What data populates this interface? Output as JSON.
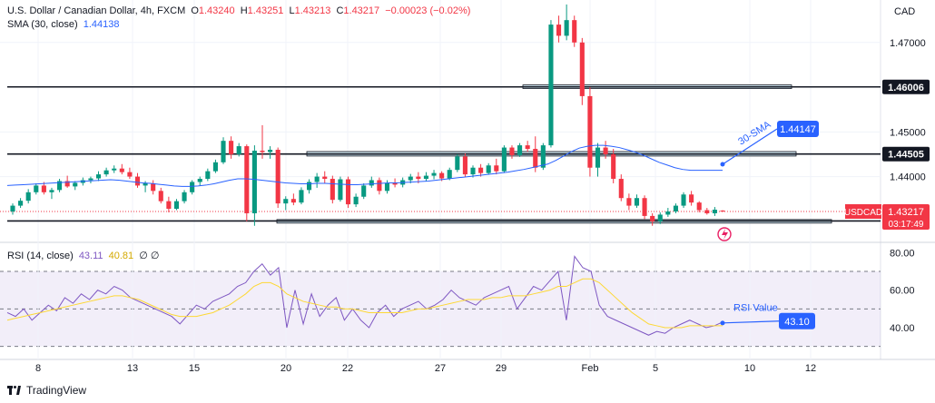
{
  "header": {
    "symbol_line": "U.S. Dollar / Canadian Dollar, 4h, FXCM",
    "open_label": "O",
    "open": "1.43240",
    "high_label": "H",
    "high": "1.43251",
    "low_label": "L",
    "low": "1.43213",
    "close_label": "C",
    "close": "1.43217",
    "change": "−0.00023 (−0.02%)",
    "sma_label": "SMA (30, close)",
    "sma_value": "1.44138",
    "rsi_label": "RSI (14, close)",
    "rsi_value": "43.11",
    "rsi_ma_value": "40.81",
    "rsi_extra": "∅ ∅"
  },
  "currency": "CAD",
  "price_axis": [
    "1.47000",
    "1.45000",
    "1.44000"
  ],
  "rsi_axis": [
    "80.00",
    "60.00",
    "40.00"
  ],
  "date_axis": [
    "8",
    "13",
    "15",
    "20",
    "22",
    "27",
    "29",
    "Feb",
    "5",
    "10",
    "12"
  ],
  "levels": [
    "1.46006",
    "1.44505",
    "1.43009"
  ],
  "price_tag": {
    "symbol": "USDCAD",
    "price": "1.43217",
    "countdown": "03:17:49"
  },
  "annotations": {
    "sma_text": "30-SMA",
    "sma_box": "1.44147",
    "rsi_text": "RSI Value",
    "rsi_box": "43.10"
  },
  "brand": "TradingView",
  "colors": {
    "up": "#089981",
    "down": "#f23645",
    "sma": "#2962ff",
    "rsi": "#7e57c2",
    "rsi_ma": "#fdd835",
    "annot": "#2962ff",
    "zone": "#c9dfe8"
  },
  "chart_data": [
    {
      "type": "candlestick",
      "title": "U.S. Dollar / Canadian Dollar, 4h, FXCM",
      "ylim": [
        1.4255,
        1.4795
      ],
      "x_ticks": [
        "8",
        "13",
        "15",
        "20",
        "22",
        "27",
        "29",
        "Feb",
        "5",
        "10",
        "12"
      ],
      "ohlc": [
        [
          1.4322,
          1.434,
          1.4315,
          1.4335
        ],
        [
          1.4335,
          1.4352,
          1.433,
          1.4346
        ],
        [
          1.4346,
          1.4372,
          1.434,
          1.4365
        ],
        [
          1.4365,
          1.4385,
          1.436,
          1.438
        ],
        [
          1.438,
          1.4388,
          1.436,
          1.4365
        ],
        [
          1.4365,
          1.4375,
          1.435,
          1.437
        ],
        [
          1.437,
          1.4395,
          1.4365,
          1.439
        ],
        [
          1.439,
          1.4402,
          1.4375,
          1.4378
        ],
        [
          1.4378,
          1.439,
          1.437,
          1.4386
        ],
        [
          1.4386,
          1.4398,
          1.438,
          1.4392
        ],
        [
          1.4392,
          1.44,
          1.4385,
          1.4396
        ],
        [
          1.4396,
          1.4412,
          1.439,
          1.4405
        ],
        [
          1.4405,
          1.442,
          1.44,
          1.4414
        ],
        [
          1.4414,
          1.4425,
          1.4408,
          1.4418
        ],
        [
          1.4418,
          1.4428,
          1.4405,
          1.441
        ],
        [
          1.441,
          1.442,
          1.4395,
          1.44
        ],
        [
          1.44,
          1.4408,
          1.4375,
          1.438
        ],
        [
          1.438,
          1.439,
          1.4365,
          1.4385
        ],
        [
          1.4385,
          1.4392,
          1.436,
          1.4368
        ],
        [
          1.4368,
          1.4375,
          1.434,
          1.4345
        ],
        [
          1.4345,
          1.4355,
          1.432,
          1.4328
        ],
        [
          1.4328,
          1.435,
          1.4325,
          1.4345
        ],
        [
          1.4345,
          1.437,
          1.434,
          1.4365
        ],
        [
          1.4365,
          1.4392,
          1.436,
          1.4388
        ],
        [
          1.4388,
          1.44,
          1.438,
          1.4395
        ],
        [
          1.4395,
          1.4418,
          1.439,
          1.4412
        ],
        [
          1.4412,
          1.4438,
          1.4408,
          1.4432
        ],
        [
          1.4432,
          1.4488,
          1.4428,
          1.448
        ],
        [
          1.448,
          1.449,
          1.444,
          1.445
        ],
        [
          1.445,
          1.4475,
          1.4445,
          1.4468
        ],
        [
          1.4468,
          1.4472,
          1.43,
          1.4318
        ],
        [
          1.4318,
          1.447,
          1.429,
          1.4458
        ],
        [
          1.4458,
          1.4515,
          1.444,
          1.4455
        ],
        [
          1.4455,
          1.4468,
          1.444,
          1.446
        ],
        [
          1.446,
          1.4465,
          1.433,
          1.434
        ],
        [
          1.434,
          1.4356,
          1.4325,
          1.435
        ],
        [
          1.435,
          1.4362,
          1.4336,
          1.4342
        ],
        [
          1.4342,
          1.4376,
          1.4338,
          1.437
        ],
        [
          1.437,
          1.4394,
          1.4362,
          1.4388
        ],
        [
          1.4388,
          1.4408,
          1.4375,
          1.44
        ],
        [
          1.44,
          1.4412,
          1.4385,
          1.4395
        ],
        [
          1.4395,
          1.4402,
          1.434,
          1.4348
        ],
        [
          1.4348,
          1.44,
          1.4344,
          1.4394
        ],
        [
          1.4394,
          1.44,
          1.433,
          1.4338
        ],
        [
          1.4338,
          1.4362,
          1.4332,
          1.4355
        ],
        [
          1.4355,
          1.4385,
          1.435,
          1.438
        ],
        [
          1.438,
          1.44,
          1.4375,
          1.4392
        ],
        [
          1.4392,
          1.4398,
          1.436,
          1.4368
        ],
        [
          1.4368,
          1.4392,
          1.4362,
          1.4385
        ],
        [
          1.4385,
          1.4396,
          1.4376,
          1.4382
        ],
        [
          1.4382,
          1.4398,
          1.4376,
          1.4392
        ],
        [
          1.4392,
          1.4406,
          1.4385,
          1.44
        ],
        [
          1.44,
          1.441,
          1.4385,
          1.4395
        ],
        [
          1.4395,
          1.441,
          1.439,
          1.4402
        ],
        [
          1.4402,
          1.4415,
          1.4394,
          1.4408
        ],
        [
          1.4408,
          1.4412,
          1.439,
          1.4396
        ],
        [
          1.4396,
          1.442,
          1.4392,
          1.4415
        ],
        [
          1.4415,
          1.445,
          1.441,
          1.4445
        ],
        [
          1.4445,
          1.4452,
          1.44,
          1.4405
        ],
        [
          1.4405,
          1.4425,
          1.4398,
          1.442
        ],
        [
          1.442,
          1.4428,
          1.44,
          1.4408
        ],
        [
          1.4408,
          1.443,
          1.4404,
          1.4425
        ],
        [
          1.4425,
          1.444,
          1.4405,
          1.4412
        ],
        [
          1.4412,
          1.447,
          1.4408,
          1.4465
        ],
        [
          1.4465,
          1.447,
          1.444,
          1.4448
        ],
        [
          1.4448,
          1.4475,
          1.4444,
          1.447
        ],
        [
          1.447,
          1.448,
          1.4455,
          1.4462
        ],
        [
          1.4462,
          1.449,
          1.441,
          1.442
        ],
        [
          1.442,
          1.4475,
          1.4415,
          1.447
        ],
        [
          1.447,
          1.475,
          1.4465,
          1.474
        ],
        [
          1.474,
          1.476,
          1.47,
          1.4715
        ],
        [
          1.4715,
          1.4785,
          1.4705,
          1.475
        ],
        [
          1.475,
          1.476,
          1.469,
          1.47
        ],
        [
          1.47,
          1.471,
          1.456,
          1.458
        ],
        [
          1.458,
          1.46,
          1.44,
          1.442
        ],
        [
          1.442,
          1.4475,
          1.44,
          1.4465
        ],
        [
          1.4465,
          1.448,
          1.444,
          1.445
        ],
        [
          1.445,
          1.4462,
          1.4385,
          1.4395
        ],
        [
          1.4395,
          1.4405,
          1.4345,
          1.4352
        ],
        [
          1.4352,
          1.4362,
          1.4325,
          1.4335
        ],
        [
          1.4335,
          1.436,
          1.433,
          1.4352
        ],
        [
          1.4352,
          1.4358,
          1.4305,
          1.4312
        ],
        [
          1.4312,
          1.4318,
          1.429,
          1.43
        ],
        [
          1.43,
          1.432,
          1.4294,
          1.4315
        ],
        [
          1.4315,
          1.433,
          1.431,
          1.4322
        ],
        [
          1.4322,
          1.434,
          1.4318,
          1.4335
        ],
        [
          1.4335,
          1.4365,
          1.433,
          1.436
        ],
        [
          1.436,
          1.4368,
          1.4335,
          1.4342
        ],
        [
          1.4342,
          1.4345,
          1.432,
          1.4325
        ],
        [
          1.4325,
          1.433,
          1.4315,
          1.4318
        ],
        [
          1.4318,
          1.4332,
          1.4312,
          1.4326
        ],
        [
          1.4324,
          1.4325,
          1.4321,
          1.4322
        ]
      ],
      "series": [
        {
          "name": "SMA (30, close)",
          "values": [
            1.438,
            1.4381,
            1.4382,
            1.4383,
            1.4384,
            1.4385,
            1.4386,
            1.4387,
            1.4388,
            1.4389,
            1.439,
            1.4391,
            1.4392,
            1.4393,
            1.4392,
            1.439,
            1.4388,
            1.4386,
            1.4385,
            1.4383,
            1.4381,
            1.4379,
            1.4378,
            1.4378,
            1.4379,
            1.4381,
            1.4384,
            1.4388,
            1.4392,
            1.4395,
            1.4395,
            1.4394,
            1.4392,
            1.439,
            1.4388,
            1.4386,
            1.4385,
            1.4384,
            1.4384,
            1.4385,
            1.4385,
            1.4384,
            1.4383,
            1.4382,
            1.4382,
            1.4383,
            1.4384,
            1.4385,
            1.4386,
            1.4386,
            1.4387,
            1.4388,
            1.4389,
            1.439,
            1.4392,
            1.4394,
            1.4396,
            1.4398,
            1.44,
            1.4402,
            1.4404,
            1.4406,
            1.4408,
            1.441,
            1.4413,
            1.4416,
            1.442,
            1.4424,
            1.4428,
            1.4436,
            1.4446,
            1.4456,
            1.4464,
            1.4468,
            1.447,
            1.447,
            1.4468,
            1.4465,
            1.446,
            1.4455,
            1.4448,
            1.444,
            1.4432,
            1.4426,
            1.442,
            1.4416,
            1.4414,
            1.4414,
            1.4414,
            1.4414,
            1.4414
          ]
        }
      ]
    },
    {
      "type": "line",
      "title": "RSI (14, close)",
      "ylim": [
        25,
        85
      ],
      "y_ticks": [
        "80.00",
        "60.00",
        "40.00"
      ],
      "series": [
        {
          "name": "RSI (14, close)",
          "values": [
            48,
            46,
            50,
            44,
            48,
            52,
            49,
            56,
            53,
            58,
            55,
            60,
            58,
            62,
            60,
            56,
            54,
            52,
            50,
            48,
            46,
            42,
            47,
            52,
            50,
            54,
            56,
            58,
            62,
            64,
            70,
            74,
            68,
            72,
            40,
            60,
            42,
            58,
            46,
            52,
            56,
            44,
            50,
            44,
            40,
            48,
            52,
            46,
            50,
            52,
            54,
            50,
            52,
            55,
            60,
            56,
            54,
            52,
            56,
            58,
            60,
            62,
            50,
            56,
            62,
            60,
            65,
            70,
            44,
            78,
            72,
            70,
            52,
            46,
            44,
            42,
            40,
            38,
            36,
            38,
            37,
            40,
            42,
            44,
            42,
            40,
            41,
            43
          ]
        },
        {
          "name": "RSI-based MA",
          "values": [
            44,
            45,
            46,
            47,
            48,
            49,
            50,
            51,
            52,
            53,
            54,
            55,
            56,
            57,
            57,
            56,
            55,
            53,
            51,
            49,
            47,
            46,
            46,
            46,
            47,
            48,
            50,
            52,
            55,
            58,
            62,
            64,
            64,
            62,
            58,
            56,
            54,
            53,
            52,
            51,
            51,
            50,
            50,
            49,
            48,
            48,
            48,
            48,
            48,
            49,
            50,
            50,
            51,
            52,
            53,
            54,
            55,
            55,
            55,
            56,
            56,
            57,
            57,
            57,
            58,
            59,
            60,
            62,
            62,
            64,
            66,
            66,
            64,
            60,
            56,
            52,
            48,
            45,
            42,
            41,
            40,
            40,
            40,
            41,
            41,
            41,
            41,
            41
          ]
        }
      ]
    }
  ]
}
